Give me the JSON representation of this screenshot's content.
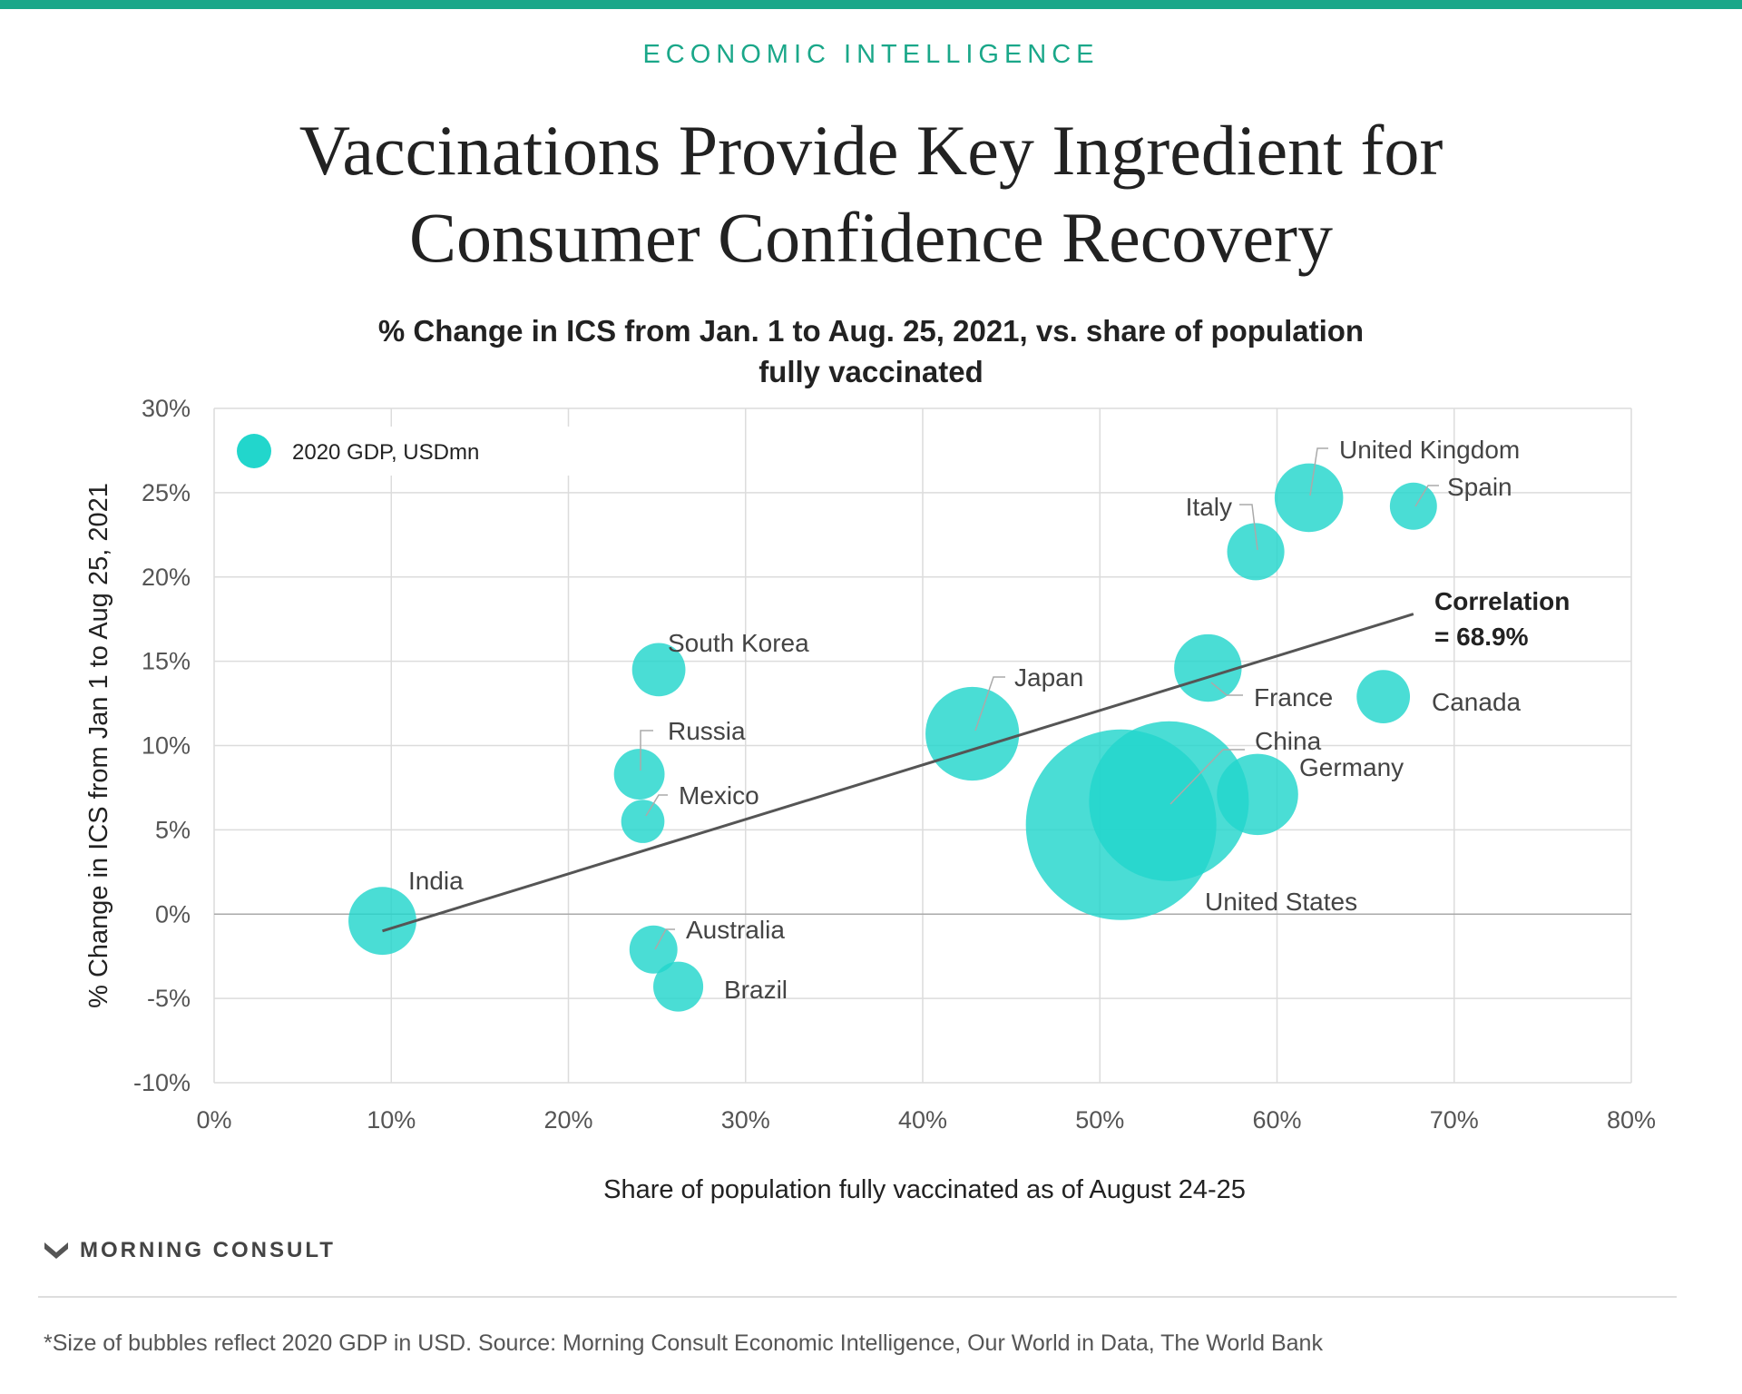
{
  "header": {
    "kicker": "ECONOMIC INTELLIGENCE",
    "title_line1": "Vaccinations Provide Key Ingredient for",
    "title_line2": "Consumer Confidence Recovery",
    "accent_color": "#1aa789"
  },
  "chart_data": {
    "type": "scatter",
    "subtitle_line1": "% Change in ICS from Jan. 1 to Aug. 25, 2021, vs. share of population",
    "subtitle_line2": "fully vaccinated",
    "xlabel": "Share of population fully vaccinated as of August 24-25",
    "ylabel": "% Change in ICS from Jan 1 to Aug 25, 2021",
    "xlim": [
      0,
      80
    ],
    "ylim": [
      -10,
      30
    ],
    "x_ticks": [
      0,
      10,
      20,
      30,
      40,
      50,
      60,
      70,
      80
    ],
    "y_ticks": [
      -10,
      -5,
      0,
      5,
      10,
      15,
      20,
      25,
      30
    ],
    "x_tick_labels": [
      "0%",
      "10%",
      "20%",
      "30%",
      "40%",
      "50%",
      "60%",
      "70%",
      "80%"
    ],
    "y_tick_labels": [
      "-10%",
      "-5%",
      "0%",
      "5%",
      "10%",
      "15%",
      "20%",
      "25%",
      "30%"
    ],
    "grid": true,
    "legend": {
      "label": "2020 GDP, USDmn",
      "position": "top-left"
    },
    "bubble_color": "#22d6cc",
    "points": [
      {
        "name": "India",
        "x": 9.5,
        "y": -0.4,
        "gdp": 2660000
      },
      {
        "name": "South Korea",
        "x": 25.1,
        "y": 14.5,
        "gdp": 1640000
      },
      {
        "name": "Russia",
        "x": 24.0,
        "y": 8.3,
        "gdp": 1480000
      },
      {
        "name": "Mexico",
        "x": 24.2,
        "y": 5.5,
        "gdp": 1080000
      },
      {
        "name": "Australia",
        "x": 24.8,
        "y": -2.1,
        "gdp": 1330000
      },
      {
        "name": "Brazil",
        "x": 26.2,
        "y": -4.3,
        "gdp": 1440000
      },
      {
        "name": "Japan",
        "x": 42.8,
        "y": 10.7,
        "gdp": 5060000
      },
      {
        "name": "United States",
        "x": 51.2,
        "y": 5.3,
        "gdp": 20940000
      },
      {
        "name": "China",
        "x": 53.9,
        "y": 6.7,
        "gdp": 14720000
      },
      {
        "name": "France",
        "x": 56.1,
        "y": 14.6,
        "gdp": 2630000
      },
      {
        "name": "Italy",
        "x": 58.8,
        "y": 21.5,
        "gdp": 1890000
      },
      {
        "name": "Germany",
        "x": 58.9,
        "y": 7.1,
        "gdp": 3810000
      },
      {
        "name": "United Kingdom",
        "x": 61.8,
        "y": 24.7,
        "gdp": 2710000
      },
      {
        "name": "Canada",
        "x": 66.0,
        "y": 12.9,
        "gdp": 1640000
      },
      {
        "name": "Spain",
        "x": 67.7,
        "y": 24.2,
        "gdp": 1280000
      }
    ],
    "trendline": {
      "x": [
        9.5,
        67.7
      ],
      "y": [
        -1.0,
        17.8
      ]
    },
    "annotation": {
      "line1": "Correlation",
      "line2": "= 68.9%"
    }
  },
  "footer": {
    "brand": "MORNING CONSULT",
    "footnote": "*Size of bubbles reflect 2020 GDP in USD. Source: Morning Consult Economic Intelligence, Our World in Data, The World Bank"
  }
}
